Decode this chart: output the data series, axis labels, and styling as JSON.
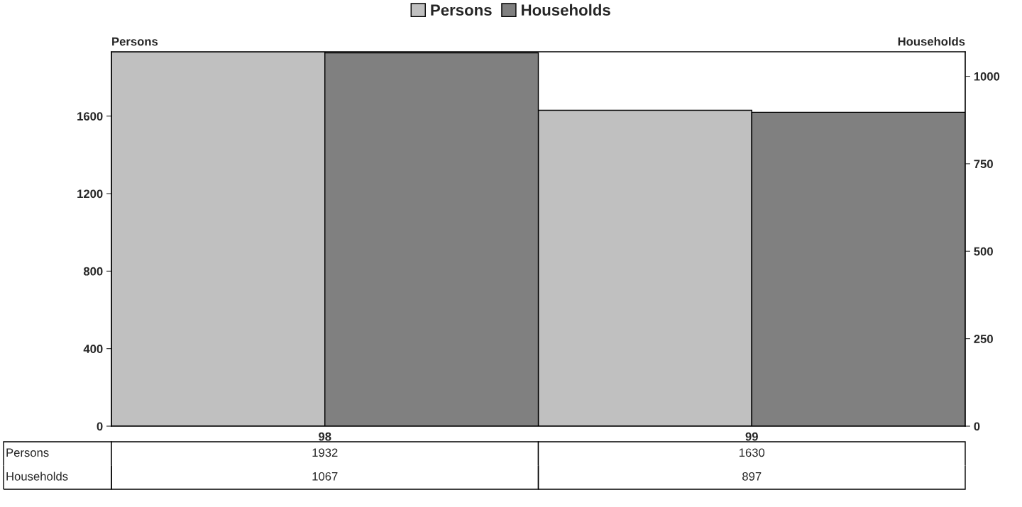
{
  "chart_data": {
    "type": "bar",
    "categories": [
      "98",
      "99"
    ],
    "series": [
      {
        "name": "Persons",
        "color": "#c0c0c0",
        "values": [
          1932,
          1630
        ]
      },
      {
        "name": "Households",
        "color": "#808080",
        "values": [
          1067,
          897
        ],
        "axis": "y2"
      }
    ],
    "ylabel": "Persons",
    "y2label": "Households",
    "ylim": [
      0,
      1932
    ],
    "yticks": [
      0,
      400,
      800,
      1200,
      1600
    ],
    "y2lim": [
      0,
      1070
    ],
    "y2ticks": [
      0,
      250,
      500,
      750,
      1000
    ],
    "grid": false,
    "legend": "top",
    "data_labels": true
  }
}
